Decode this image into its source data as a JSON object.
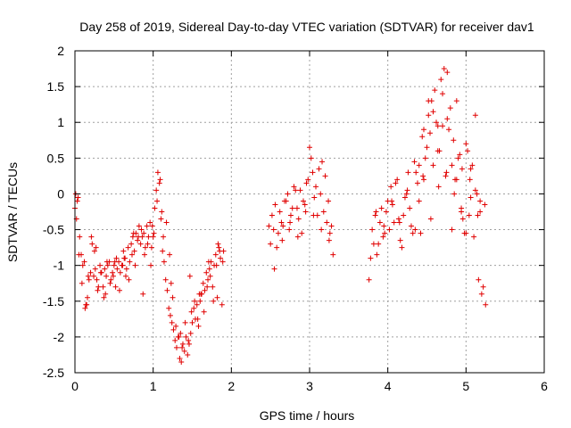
{
  "chart_data": {
    "type": "scatter",
    "title": "Day 258 of 2019, Sidereal Day-to-day VTEC variation (SDTVAR) for receiver dav1",
    "xlabel": "GPS time / hours",
    "ylabel": "SDTVAR / TECUs",
    "xlim": [
      0,
      6
    ],
    "ylim": [
      -2.5,
      2
    ],
    "x_ticks": [
      "0",
      "1",
      "2",
      "3",
      "4",
      "5",
      "6"
    ],
    "y_ticks": [
      "-2.5",
      "-2",
      "-1.5",
      "-1",
      "-0.5",
      "0",
      "0.5",
      "1",
      "1.5",
      "2"
    ],
    "grid": true,
    "marker": "+",
    "marker_color": "#e00000",
    "series": [
      {
        "name": "SDTVAR",
        "x": [
          0.0,
          0.02,
          0.04,
          0.06,
          0.08,
          0.1,
          0.12,
          0.14,
          0.16,
          0.18,
          0.2,
          0.22,
          0.24,
          0.26,
          0.28,
          0.3,
          0.32,
          0.34,
          0.36,
          0.38,
          0.4,
          0.42,
          0.44,
          0.46,
          0.48,
          0.5,
          0.52,
          0.54,
          0.56,
          0.58,
          0.6,
          0.62,
          0.64,
          0.66,
          0.68,
          0.7,
          0.72,
          0.74,
          0.76,
          0.78,
          0.8,
          0.82,
          0.84,
          0.86,
          0.88,
          0.9,
          0.92,
          0.94,
          0.96,
          0.98,
          1.0,
          1.02,
          1.04,
          1.06,
          1.08,
          1.1,
          1.12,
          1.14,
          1.16,
          1.18,
          1.2,
          1.22,
          1.24,
          1.26,
          1.28,
          1.3,
          1.32,
          1.34,
          1.36,
          1.38,
          1.4,
          1.42,
          1.44,
          1.46,
          1.48,
          1.5,
          1.52,
          1.54,
          1.56,
          1.58,
          1.6,
          1.62,
          1.64,
          1.66,
          1.68,
          1.7,
          1.72,
          1.74,
          1.76,
          1.78,
          1.8,
          1.82,
          1.84,
          1.86,
          1.88,
          1.9,
          0.01,
          0.05,
          0.09,
          0.13,
          0.17,
          0.21,
          0.25,
          0.29,
          0.33,
          0.37,
          0.41,
          0.45,
          0.49,
          0.53,
          0.57,
          0.61,
          0.65,
          0.69,
          0.73,
          0.77,
          0.81,
          0.85,
          0.89,
          0.93,
          0.97,
          1.01,
          1.05,
          1.09,
          1.13,
          1.17,
          1.21,
          1.25,
          1.29,
          1.33,
          1.37,
          1.41,
          1.45,
          1.49,
          1.53,
          1.57,
          1.61,
          1.65,
          1.69,
          1.73,
          1.77,
          1.81,
          1.85,
          1.89,
          0.03,
          0.15,
          0.27,
          0.39,
          0.51,
          0.63,
          0.75,
          0.87,
          0.99,
          1.11,
          1.23,
          1.35,
          1.47,
          1.59,
          1.71,
          1.83,
          2.48,
          2.52,
          2.56,
          2.6,
          2.64,
          2.68,
          2.72,
          2.76,
          2.8,
          2.84,
          2.88,
          2.92,
          2.96,
          3.0,
          3.04,
          3.08,
          3.12,
          3.16,
          3.2,
          3.24,
          3.28,
          2.5,
          2.54,
          2.58,
          2.62,
          2.66,
          2.7,
          2.74,
          2.78,
          2.82,
          2.86,
          2.9,
          2.94,
          2.98,
          3.02,
          3.06,
          3.1,
          3.14,
          3.18,
          3.22,
          3.26,
          3.3,
          2.55,
          2.65,
          2.75,
          2.85,
          2.95,
          3.05,
          3.15,
          3.25,
          3.76,
          3.8,
          3.84,
          3.88,
          3.92,
          3.96,
          4.0,
          4.04,
          4.08,
          4.12,
          4.16,
          4.2,
          4.24,
          4.28,
          4.32,
          4.36,
          4.4,
          4.44,
          4.48,
          4.52,
          4.56,
          4.6,
          4.64,
          4.68,
          4.72,
          4.76,
          4.8,
          4.84,
          4.88,
          4.92,
          4.96,
          5.0,
          5.04,
          5.08,
          5.12,
          5.16,
          5.2,
          3.78,
          3.82,
          3.86,
          3.9,
          3.94,
          3.98,
          4.02,
          4.06,
          4.1,
          4.14,
          4.18,
          4.22,
          4.26,
          4.3,
          4.34,
          4.38,
          4.42,
          4.46,
          4.5,
          4.54,
          4.58,
          4.62,
          4.66,
          4.7,
          4.74,
          4.78,
          4.82,
          4.86,
          4.9,
          4.94,
          4.98,
          5.02,
          5.06,
          5.1,
          5.14,
          5.18,
          5.22,
          3.85,
          3.95,
          4.05,
          4.15,
          4.25,
          4.35,
          4.45,
          4.55,
          4.65,
          4.75,
          4.85,
          4.95,
          5.05,
          5.15,
          5.25,
          4.4,
          4.46,
          4.52,
          4.58,
          4.64,
          4.7,
          4.76,
          4.82,
          4.88,
          4.94,
          5.0,
          5.06,
          5.12,
          5.18,
          5.24
        ],
        "y": [
          -0.2,
          -0.35,
          -0.05,
          -0.6,
          -0.85,
          -1.0,
          -0.95,
          -1.55,
          -1.45,
          -1.2,
          -1.1,
          -0.7,
          -1.15,
          -1.05,
          -1.2,
          -1.3,
          -1.0,
          -1.1,
          -1.3,
          -1.05,
          -1.15,
          -1.0,
          -0.95,
          -1.2,
          -1.1,
          -1.0,
          -1.3,
          -1.05,
          -0.95,
          -1.1,
          -1.0,
          -0.8,
          -0.9,
          -1.05,
          -0.75,
          -0.95,
          -0.7,
          -0.6,
          -0.8,
          -0.55,
          -0.65,
          -0.45,
          -0.7,
          -0.6,
          -0.55,
          -0.75,
          -0.45,
          -0.6,
          -0.4,
          -0.75,
          -0.6,
          -0.2,
          0.05,
          0.3,
          0.15,
          -0.35,
          -0.8,
          -0.95,
          -1.2,
          -1.35,
          -1.6,
          -1.7,
          -1.8,
          -1.9,
          -2.05,
          -2.15,
          -2.0,
          -2.3,
          -2.35,
          -2.1,
          -2.2,
          -2.0,
          -2.25,
          -2.1,
          -1.95,
          -1.8,
          -1.6,
          -1.75,
          -1.55,
          -1.85,
          -1.5,
          -1.4,
          -1.25,
          -1.35,
          -1.1,
          -1.2,
          -1.05,
          -0.95,
          -1.3,
          -1.0,
          -0.85,
          -1.45,
          -0.75,
          -0.9,
          -1.55,
          -0.8,
          0.0,
          -0.85,
          -1.25,
          -1.6,
          -1.15,
          -0.6,
          -0.8,
          -1.35,
          -1.1,
          -1.45,
          -0.95,
          -1.25,
          -1.15,
          -0.9,
          -1.35,
          -1.0,
          -1.15,
          -1.2,
          -0.85,
          -1.0,
          -0.6,
          -0.5,
          -0.85,
          -0.7,
          -1.0,
          -0.55,
          -0.1,
          0.2,
          -0.6,
          -0.4,
          -0.85,
          -1.45,
          -1.85,
          -2.0,
          -2.15,
          -1.8,
          -2.05,
          -1.65,
          -1.5,
          -1.75,
          -1.4,
          -1.65,
          -1.3,
          -1.15,
          -1.5,
          -1.0,
          -0.8,
          -0.95,
          -0.1,
          -1.55,
          -0.75,
          -1.4,
          -0.95,
          -0.9,
          -0.55,
          -1.4,
          -0.45,
          -0.25,
          -1.25,
          -1.95,
          -1.15,
          -1.4,
          -0.95,
          -0.7,
          -0.45,
          -0.3,
          -0.15,
          -0.55,
          -0.4,
          -0.1,
          0.0,
          -0.3,
          0.1,
          -0.2,
          0.05,
          -0.1,
          0.15,
          0.65,
          0.3,
          0.1,
          0.35,
          0.45,
          0.25,
          -0.1,
          -0.45,
          -0.7,
          -0.5,
          -0.75,
          -0.25,
          -0.45,
          -0.1,
          -0.5,
          -0.2,
          0.05,
          -0.35,
          -0.55,
          -0.15,
          0.2,
          0.5,
          -0.05,
          -0.3,
          0.0,
          -0.25,
          -0.4,
          -0.55,
          -0.85,
          -1.05,
          -0.65,
          -0.4,
          -0.6,
          -0.25,
          -0.3,
          -0.5,
          -0.65,
          -1.2,
          -0.5,
          -0.3,
          -0.7,
          -0.2,
          -0.55,
          -0.1,
          0.1,
          -0.4,
          0.2,
          -0.65,
          -0.3,
          0.0,
          -0.2,
          -0.55,
          0.3,
          -0.1,
          0.8,
          0.5,
          1.1,
          1.3,
          1.45,
          0.95,
          1.6,
          1.75,
          1.05,
          1.2,
          0.75,
          1.3,
          0.55,
          -0.35,
          0.7,
          -0.3,
          0.4,
          0.05,
          -1.2,
          -1.4,
          -0.9,
          -0.7,
          -0.85,
          -0.4,
          -0.6,
          -0.25,
          -0.5,
          -0.15,
          0.15,
          -0.35,
          -0.75,
          -0.05,
          0.3,
          -0.45,
          0.45,
          0.15,
          -0.55,
          0.2,
          0.65,
          0.85,
          0.4,
          1.0,
          0.6,
          1.4,
          0.25,
          0.9,
          -0.5,
          0.2,
          0.5,
          -0.2,
          -0.55,
          0.6,
          -0.05,
          -0.6,
          0.0,
          -0.25,
          -1.3,
          -0.25,
          -0.45,
          -0.1,
          -0.4,
          0.05,
          -0.5,
          0.25,
          -0.35,
          0.1,
          0.3,
          0.0,
          0.35,
          0.2,
          -0.3,
          -1.55,
          0.4,
          0.9,
          1.3,
          1.15,
          0.6,
          0.95,
          1.7,
          0.4,
          0.2,
          -0.25,
          -0.55,
          0.35,
          1.1,
          -0.1,
          -0.15
        ]
      }
    ]
  }
}
